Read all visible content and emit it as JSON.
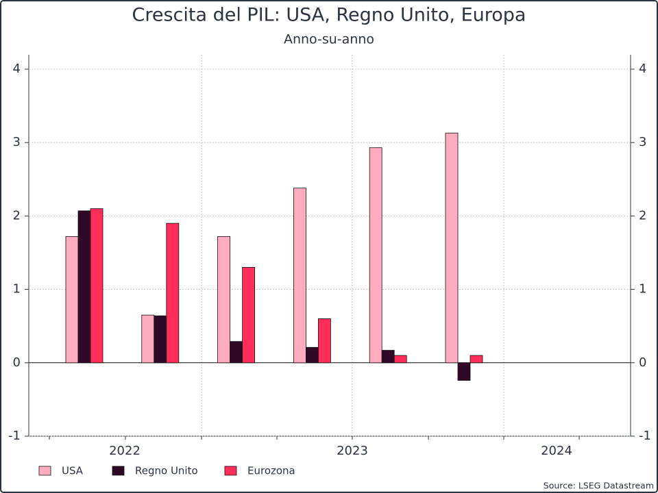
{
  "chart_data": {
    "type": "bar",
    "title": "Crescita del PIL: USA, Regno Unito, Europa",
    "subtitle": "Anno-su-anno",
    "categories": [
      null,
      null,
      null,
      null,
      null,
      null
    ],
    "x_labels": [
      "2022",
      "2023",
      "2024"
    ],
    "series": [
      {
        "name": "USA",
        "color": "#ffabc0",
        "values": [
          1.72,
          0.65,
          1.72,
          2.38,
          2.93,
          3.13
        ]
      },
      {
        "name": "Regno Unito",
        "color": "#2e0a27",
        "values": [
          2.07,
          0.64,
          0.29,
          0.21,
          0.17,
          -0.24
        ]
      },
      {
        "name": "Eurozona",
        "color": "#ff2d57",
        "values": [
          2.1,
          1.9,
          1.3,
          0.6,
          0.1,
          0.1
        ]
      }
    ],
    "ylim": [
      -1,
      4
    ],
    "yticks": [
      -1,
      0,
      1,
      2,
      3,
      4
    ],
    "grid": true,
    "legend": "bottom",
    "source": "Source: LSEG Datastream"
  }
}
